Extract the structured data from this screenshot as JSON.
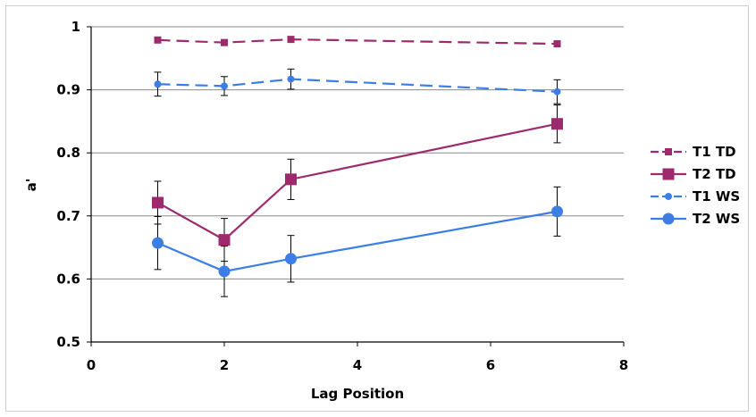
{
  "chart_data": {
    "type": "line",
    "xlabel": "Lag Position",
    "ylabel": "a'",
    "xlim": [
      0,
      8
    ],
    "ylim": [
      0.5,
      1
    ],
    "x_ticks": [
      "0",
      "2",
      "4",
      "6",
      "8"
    ],
    "y_ticks": [
      "0.5",
      "0.6",
      "0.7",
      "0.8",
      "0.9",
      "1"
    ],
    "grid": "horizontal",
    "legend_position": "right",
    "x": [
      1,
      2,
      3,
      7
    ],
    "series": [
      {
        "name": "T1 TD",
        "color": "#9e2a6e",
        "dash": true,
        "marker": "square",
        "marker_size": "small",
        "values": [
          0.979,
          0.975,
          0.98,
          0.973
        ],
        "errors": [
          0.003,
          0.003,
          0.003,
          0.004
        ]
      },
      {
        "name": "T2 TD",
        "color": "#9e2a6e",
        "dash": false,
        "marker": "square",
        "marker_size": "large",
        "values": [
          0.721,
          0.662,
          0.758,
          0.846
        ],
        "errors": [
          0.034,
          0.034,
          0.032,
          0.03
        ]
      },
      {
        "name": "T1 WS",
        "color": "#3c7ee6",
        "dash": true,
        "marker": "circle",
        "marker_size": "small",
        "values": [
          0.909,
          0.906,
          0.917,
          0.897
        ],
        "errors": [
          0.019,
          0.015,
          0.016,
          0.019
        ]
      },
      {
        "name": "T2 WS",
        "color": "#3c7ee6",
        "dash": false,
        "marker": "circle",
        "marker_size": "large",
        "values": [
          0.657,
          0.612,
          0.632,
          0.707
        ],
        "errors": [
          0.042,
          0.04,
          0.037,
          0.039
        ]
      }
    ]
  }
}
